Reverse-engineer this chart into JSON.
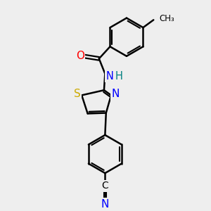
{
  "bg_color": "#eeeeee",
  "line_color": "#000000",
  "bond_width": 1.8,
  "atom_colors": {
    "O": "#ff0000",
    "N": "#0000ff",
    "S": "#ccaa00",
    "C": "#000000",
    "H": "#008080"
  },
  "fig_size": [
    3.0,
    3.0
  ],
  "dpi": 100,
  "xlim": [
    0,
    10
  ],
  "ylim": [
    0,
    10
  ]
}
